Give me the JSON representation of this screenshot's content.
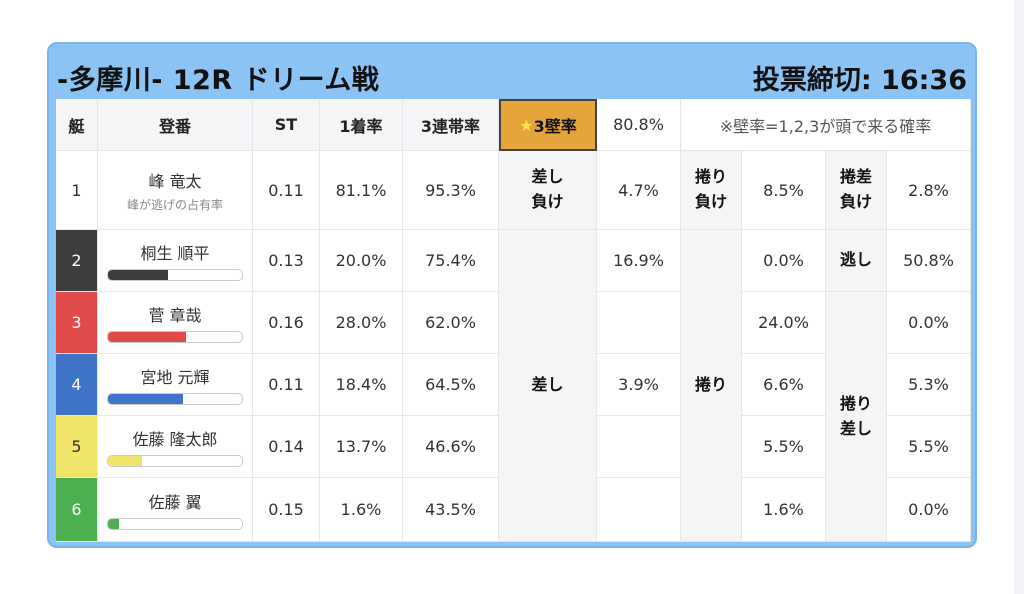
{
  "header": {
    "title": "-多摩川- 12R ドリーム戦",
    "deadline": "投票締切: 16:36"
  },
  "columns": {
    "waku": "艇",
    "name": "登番",
    "st": "ST",
    "win1": "1着率",
    "top3": "3連帯率",
    "wall": "3壁率",
    "wall_value": "80.8%",
    "note": "※壁率=1,2,3が頭で来る確率"
  },
  "racers": [
    {
      "lane": "1",
      "name": "峰 竜太",
      "sub": "峰が逃げの占有率",
      "st": "0.11",
      "win1": "81.1%",
      "top3": "95.3%",
      "lane_color": "#ffffff",
      "lane_text": "#333333"
    },
    {
      "lane": "2",
      "name": "桐生 順平",
      "st": "0.13",
      "win1": "20.0%",
      "top3": "75.4%",
      "bar": 0.45,
      "bar_color": "#3d3d3d",
      "lane_color": "#3d3d3d",
      "lane_text": "#ffffff"
    },
    {
      "lane": "3",
      "name": "菅 章哉",
      "st": "0.16",
      "win1": "28.0%",
      "top3": "62.0%",
      "bar": 0.58,
      "bar_color": "#e04a48",
      "lane_color": "#e04a48",
      "lane_text": "#ffffff"
    },
    {
      "lane": "4",
      "name": "宮地 元輝",
      "st": "0.11",
      "win1": "18.4%",
      "top3": "64.5%",
      "bar": 0.56,
      "bar_color": "#3f74c9",
      "lane_color": "#3f74c9",
      "lane_text": "#ffffff"
    },
    {
      "lane": "5",
      "name": "佐藤 隆太郎",
      "st": "0.14",
      "win1": "13.7%",
      "top3": "46.6%",
      "bar": 0.25,
      "bar_color": "#efe56a",
      "lane_color": "#efe56a",
      "lane_text": "#333333"
    },
    {
      "lane": "6",
      "name": "佐藤 翼",
      "st": "0.15",
      "win1": "1.6%",
      "top3": "43.5%",
      "bar": 0.08,
      "bar_color": "#4caf50",
      "lane_color": "#4caf50",
      "lane_text": "#ffffff"
    }
  ],
  "labels": {
    "sashi_make": "差し\n負け",
    "makuri_make": "捲り\n負け",
    "makurizashi_make": "捲差\n負け",
    "nige": "逃し",
    "sashi": "差し",
    "makuri": "捲り",
    "makurizashi": "捲り\n差し"
  },
  "rates": {
    "sashi_make": "4.7%",
    "makuri_make": "8.5%",
    "makurizashi_make": "2.8%",
    "sashi": [
      "16.9%",
      "",
      "3.9%",
      "",
      ""
    ],
    "makuri": [
      "0.0%",
      "24.0%",
      "6.6%",
      "5.5%",
      "1.6%"
    ],
    "nige": "50.8%",
    "makurizashi": [
      "0.0%",
      "5.3%",
      "5.5%",
      "0.0%"
    ]
  }
}
